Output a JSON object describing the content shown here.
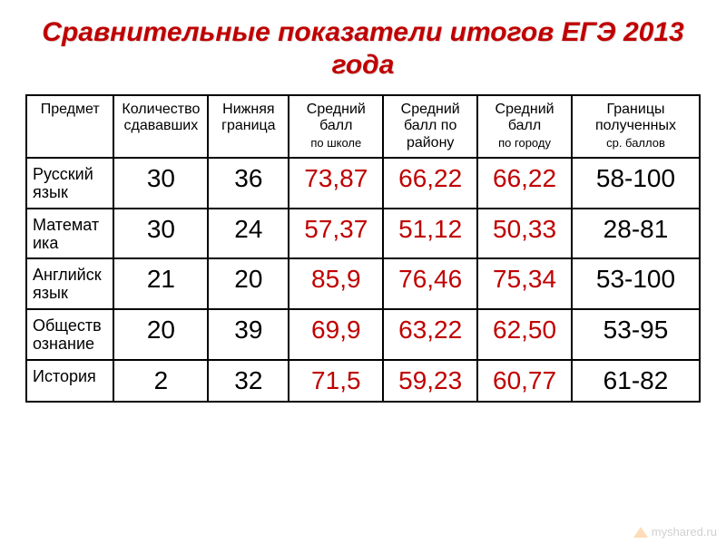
{
  "title": "Сравнительные показатели итогов ЕГЭ 2013 года",
  "colors": {
    "title": "#c00000",
    "score": "#c00000",
    "border": "#000000",
    "background": "#ffffff"
  },
  "table": {
    "type": "table",
    "columns": [
      {
        "label": "Предмет",
        "sub": ""
      },
      {
        "label": "Количество сдававших",
        "sub": ""
      },
      {
        "label": "Нижняя граница",
        "sub": ""
      },
      {
        "label": "Средний балл",
        "sub": "по школе"
      },
      {
        "label": "Средний балл по району",
        "sub": ""
      },
      {
        "label": "Средний балл",
        "sub": "по городу"
      },
      {
        "label": "Границы полученных",
        "sub": "ср. баллов"
      }
    ],
    "rows": [
      {
        "subject": "Русский язык",
        "count": "30",
        "lower": "36",
        "school": "73,87",
        "district": "66,22",
        "city": "66,22",
        "range": "58-100"
      },
      {
        "subject": "Математика",
        "count": "30",
        "lower": "24",
        "school": "57,37",
        "district": "51,12",
        "city": "50,33",
        "range": "28-81"
      },
      {
        "subject": "Английск язык",
        "count": "21",
        "lower": "20",
        "school": "85,9",
        "district": "76,46",
        "city": "75,34",
        "range": "53-100"
      },
      {
        "subject": "Обществознание",
        "count": "20",
        "lower": "39",
        "school": "69,9",
        "district": "63,22",
        "city": "62,50",
        "range": "53-95"
      },
      {
        "subject": "История",
        "count": "2",
        "lower": "32",
        "school": "71,5",
        "district": "59,23",
        "city": "60,77",
        "range": "61-82"
      }
    ]
  },
  "footer": {
    "text": "myshared.ru"
  }
}
